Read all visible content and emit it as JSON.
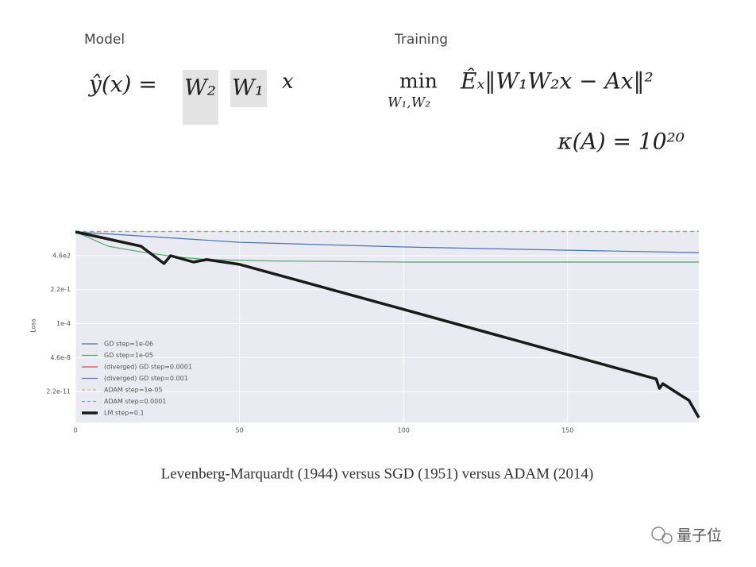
{
  "slide": {
    "model_label": "Model",
    "training_label": "Training",
    "model_equation": {
      "lhs": "ŷ(x) =",
      "w2": "W₂",
      "w1": "W₁",
      "x": "x"
    },
    "training_objective": {
      "min": "min",
      "min_sub": "W₁,W₂",
      "expr": "Êₓ‖W₁W₂x − Ax‖²"
    },
    "condition": "κ(A) = 10²⁰",
    "caption": "Levenberg-Marquardt (1944) versus SGD (1951) versus ADAM (2014)",
    "watermark": "量子位"
  },
  "chart_data": {
    "type": "line",
    "y_label": "Loss",
    "ylog": true,
    "grid": true,
    "legend": "lower left",
    "xlim": [
      0,
      190
    ],
    "xticks": [
      0,
      50,
      100,
      150
    ],
    "ylim": [
      2e-14,
      120000.0
    ],
    "yticks": [
      {
        "value": 2.2e-11,
        "label": "2.2e-11"
      },
      {
        "value": 4.6e-08,
        "label": "4.6e-8"
      },
      {
        "value": 0.0001,
        "label": "1e-4"
      },
      {
        "value": 0.22,
        "label": "2.2e-1"
      },
      {
        "value": 460,
        "label": "4.6e2"
      }
    ],
    "series": [
      {
        "name": "GD step=1e-06",
        "color": "#4c72b0",
        "dashed": false,
        "linewidth": 1.2,
        "x": [
          0,
          50,
          100,
          150,
          190
        ],
        "values": [
          100000,
          9500,
          3300,
          1600,
          930
        ]
      },
      {
        "name": "GD step=1e-05",
        "color": "#55a868",
        "dashed": false,
        "linewidth": 1.2,
        "x": [
          0,
          10,
          20,
          30,
          40,
          60,
          100,
          150,
          190
        ],
        "values": [
          100000,
          3900,
          1100,
          380,
          190,
          140,
          110,
          110,
          110
        ]
      },
      {
        "name": "(diverged) GD step=0.0001",
        "color": "#c44e52",
        "dashed": false,
        "linewidth": 1.2,
        "x": [],
        "values": []
      },
      {
        "name": "(diverged) GD step=0.001",
        "color": "#8172b2",
        "dashed": false,
        "linewidth": 1.2,
        "x": [],
        "values": []
      },
      {
        "name": "ADAM step=1e-05",
        "color": "#ccb974",
        "dashed": true,
        "linewidth": 1.2,
        "x": [
          0,
          190
        ],
        "values": [
          110000,
          110000
        ]
      },
      {
        "name": "ADAM step=0.0001",
        "color": "#64b5cd",
        "dashed": true,
        "linewidth": 1.2,
        "x": [
          0,
          190
        ],
        "values": [
          110000,
          110000
        ]
      },
      {
        "name": "LM step=0.1",
        "color": "#1a1a1a",
        "dashed": false,
        "linewidth": 3.5,
        "x": [
          0,
          10,
          20,
          27,
          29,
          36,
          40,
          50,
          100,
          150,
          177,
          178,
          179,
          185,
          187,
          190
        ],
        "values": [
          100000,
          20000,
          3900,
          78,
          460,
          110,
          190,
          65,
          0.0025,
          9e-08,
          3.7e-10,
          4.4e-11,
          1.3e-10,
          7.4e-12,
          3e-12,
          6e-14
        ]
      }
    ]
  }
}
